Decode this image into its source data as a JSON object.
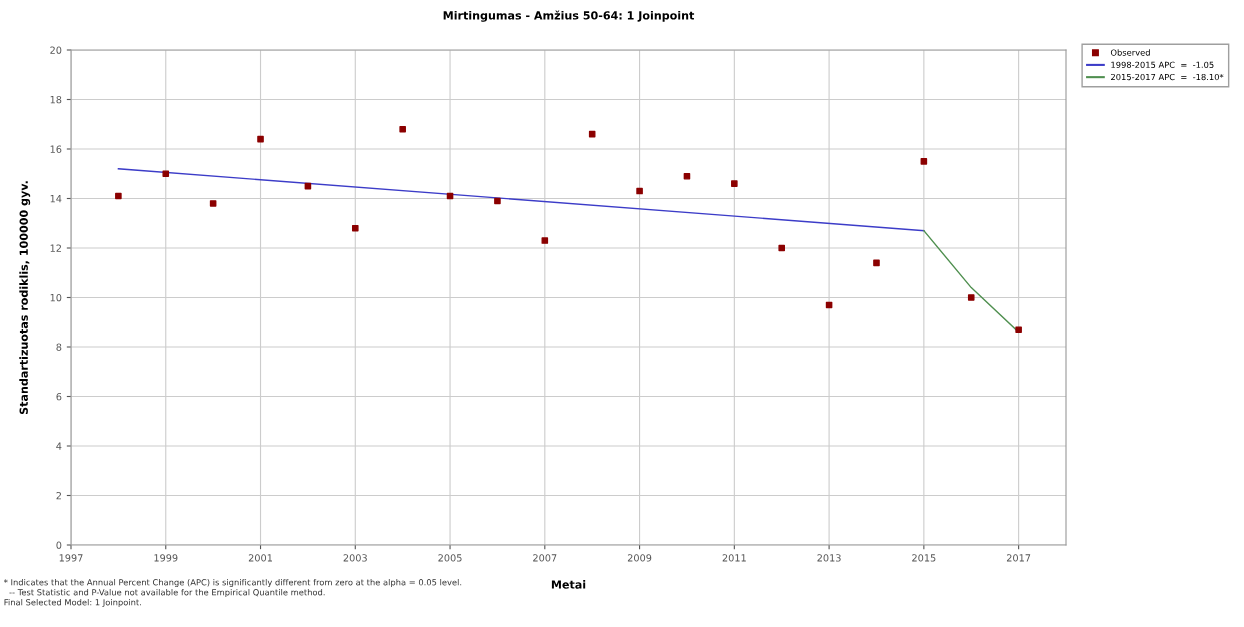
{
  "chart_data": {
    "type": "line",
    "title": "Mirtingumas - Amžius 50-64: 1 Joinpoint",
    "xlabel": "Metai",
    "ylabel": "Standartizuotas rodiklis, 100000 gyv.",
    "series": [
      {
        "name": "Observed",
        "type": "scatter",
        "marker": "square",
        "color": "#8b0000",
        "x": [
          1998,
          1999,
          2000,
          2001,
          2002,
          2003,
          2004,
          2005,
          2006,
          2007,
          2008,
          2009,
          2010,
          2011,
          2012,
          2013,
          2014,
          2015,
          2016,
          2017
        ],
        "values": [
          14.1,
          15.0,
          13.8,
          16.4,
          14.5,
          12.8,
          16.8,
          14.1,
          13.9,
          12.3,
          16.6,
          14.3,
          14.9,
          14.6,
          12.0,
          9.7,
          11.4,
          15.5,
          10.0,
          8.7
        ]
      },
      {
        "name": "1998-2015 APC  =  -1.05",
        "marker": "none",
        "color": "#3c3cc8",
        "x": [
          1998,
          2015
        ],
        "values": [
          15.2,
          12.7
        ]
      },
      {
        "name": "2015-2017 APC  =  -18.10*",
        "marker": "none",
        "color": "#4f8f4f",
        "x": [
          2015,
          2016,
          2017
        ],
        "values": [
          12.7,
          10.4,
          8.6
        ]
      }
    ],
    "xlim": [
      1997,
      2018
    ],
    "xticks": [
      1997,
      1999,
      2001,
      2003,
      2005,
      2007,
      2009,
      2011,
      2013,
      2015,
      2017
    ],
    "ylim": [
      0,
      20
    ],
    "yticks": [
      0,
      2,
      4,
      6,
      8,
      10,
      12,
      14,
      16,
      18,
      20
    ],
    "grid": true,
    "legend": "top right",
    "annotations": [
      "* Indicates that the Annual Percent Change (APC) is significantly different from zero at the alpha = 0.05 level.",
      "  -- Test Statistic and P-Value not available for the Empirical Quantile method.",
      "Final Selected Model: 1 Joinpoint."
    ]
  }
}
